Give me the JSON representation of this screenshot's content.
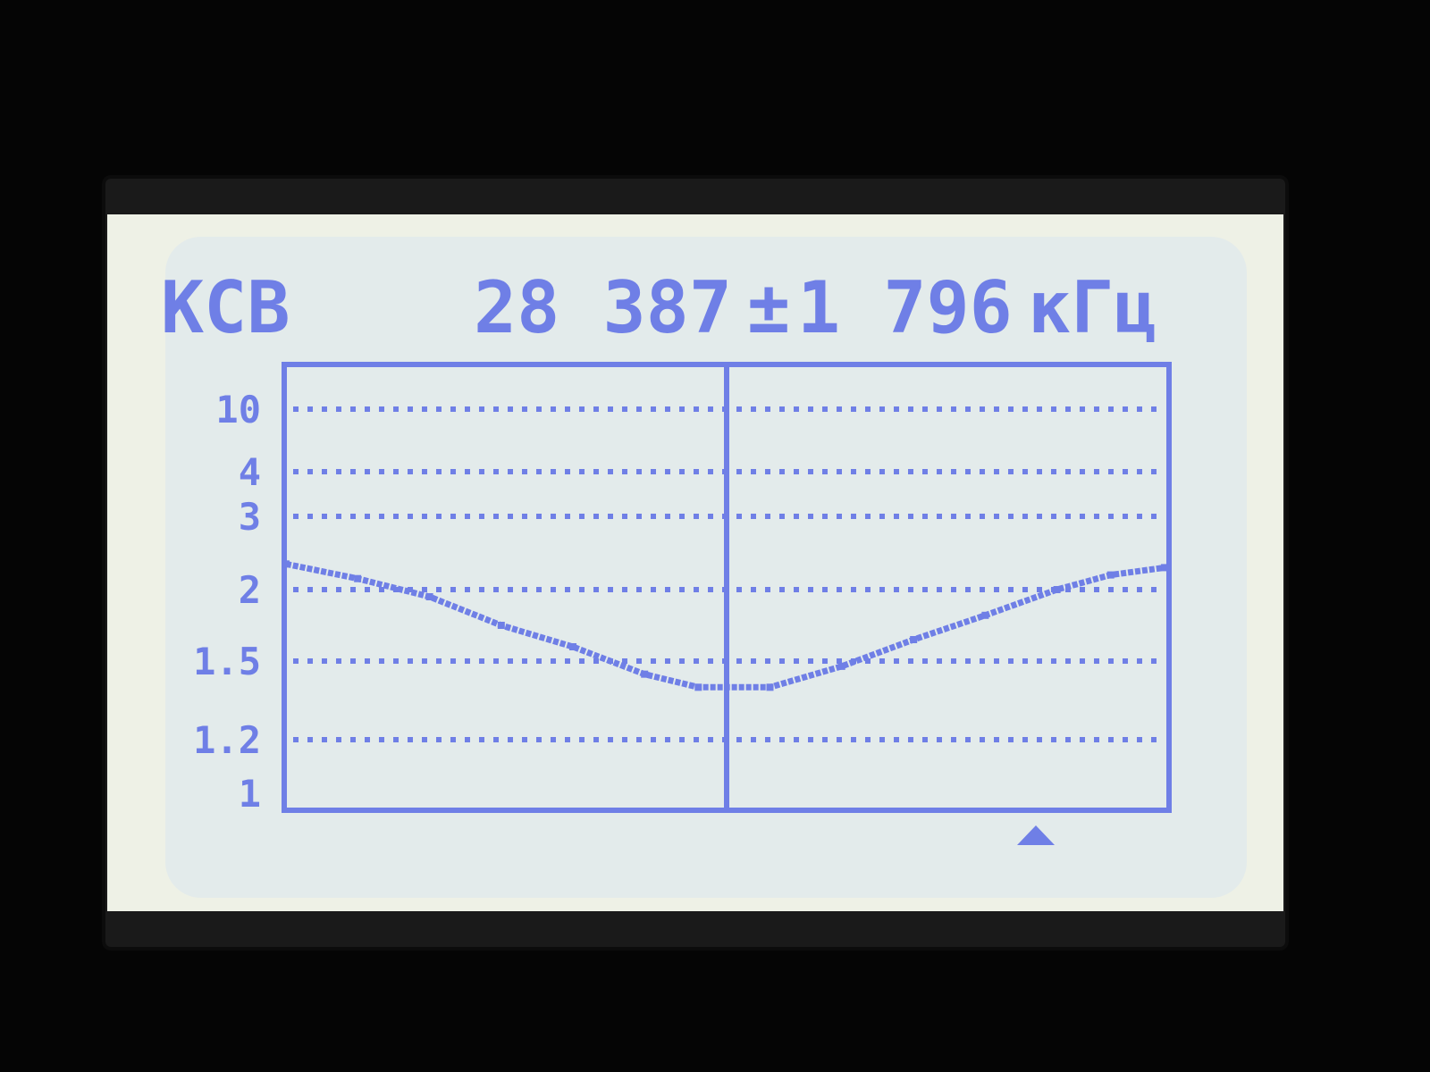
{
  "header": {
    "mode_label": "КСВ",
    "center_frequency": "28 387",
    "plus_minus": "±",
    "span": "1 796",
    "unit": "кГц"
  },
  "colors": {
    "lcd_ink": "#6f7fe6",
    "lcd_background": "#e3ebeb",
    "bezel": "#1a1a1a"
  },
  "marker_icon": "triangle-marker-icon",
  "chart_data": {
    "type": "line",
    "title": "",
    "xlabel": "",
    "ylabel": "",
    "y_scale": "nonlinear (SWR)",
    "ytick_labels": [
      "10",
      "4",
      "3",
      "2",
      "1.5",
      "1.2",
      "1"
    ],
    "yticks": [
      10,
      4,
      3,
      2,
      1.5,
      1.2,
      1
    ],
    "xlim": [
      26591,
      30183
    ],
    "grid": "dotted horizontal at ticks, solid vertical at center frequency",
    "series": [
      {
        "x": [
          26598,
          26889,
          27181,
          27472,
          27763,
          28054,
          28272,
          28563,
          28854,
          29146,
          29437,
          29728,
          29946,
          30165
        ],
        "y": [
          2.35,
          2.15,
          1.95,
          1.75,
          1.6,
          1.45,
          1.4,
          1.4,
          1.48,
          1.65,
          1.82,
          2.0,
          2.2,
          2.3
        ]
      }
    ]
  }
}
